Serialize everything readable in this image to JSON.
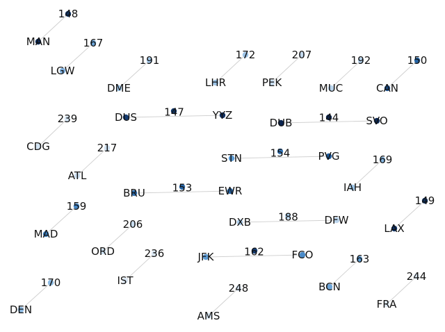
{
  "colors": {
    "edge": "#cfcfcf",
    "text": "#111111",
    "background": "#ffffff"
  },
  "nodes": [
    {
      "id": "MAN",
      "label": "MAN",
      "color": "#0d2a57"
    },
    {
      "id": "LGW",
      "label": "LGW",
      "color": "#7fb0de"
    },
    {
      "id": "DME",
      "label": "DME",
      "color": "#a3c9ea"
    },
    {
      "id": "LHR",
      "label": "LHR",
      "color": "#9cc4e8"
    },
    {
      "id": "PEK",
      "label": "PEK",
      "color": "#c7dcef"
    },
    {
      "id": "MUC",
      "label": "MUC",
      "color": "#b9d4ec"
    },
    {
      "id": "CAN",
      "label": "CAN",
      "color": "#1d4f8a"
    },
    {
      "id": "DUS",
      "label": "DUS",
      "color": "#163d72"
    },
    {
      "id": "YYZ",
      "label": "YYZ",
      "color": "#102f60"
    },
    {
      "id": "DUB",
      "label": "DUB",
      "color": "#0b2550"
    },
    {
      "id": "SVO",
      "label": "SVO",
      "color": "#0d2a57"
    },
    {
      "id": "CDG",
      "label": "CDG",
      "color": "#d3e4f3"
    },
    {
      "id": "ATL",
      "label": "ATL",
      "color": "#ccdff1"
    },
    {
      "id": "STN",
      "label": "STN",
      "color": "#5a9ad3"
    },
    {
      "id": "PVG",
      "label": "PVG",
      "color": "#1f5a9a"
    },
    {
      "id": "IAH",
      "label": "IAH",
      "color": "#9ec6e8"
    },
    {
      "id": "BRU",
      "label": "BRU",
      "color": "#2f6eae"
    },
    {
      "id": "EWR",
      "label": "EWR",
      "color": "#2a66a6"
    },
    {
      "id": "MAD",
      "label": "MAD",
      "color": "#3a7dbd"
    },
    {
      "id": "LAX",
      "label": "LAX",
      "color": "#0f3266"
    },
    {
      "id": "DXB",
      "label": "DXB",
      "color": "#a9cbe9"
    },
    {
      "id": "DFW",
      "label": "DFW",
      "color": "#bcd5ec"
    },
    {
      "id": "ORD",
      "label": "ORD",
      "color": "#cde0f1"
    },
    {
      "id": "JFK",
      "label": "JFK",
      "color": "#5d9bd3"
    },
    {
      "id": "FCO",
      "label": "FCO",
      "color": "#4a8bc9"
    },
    {
      "id": "IST",
      "label": "IST",
      "color": "#dde9f5"
    },
    {
      "id": "DEN",
      "label": "DEN",
      "color": "#8ebbe3"
    },
    {
      "id": "BCN",
      "label": "BCN",
      "color": "#6ea6d9"
    },
    {
      "id": "FRA",
      "label": "FRA",
      "color": "#e2edf7"
    },
    {
      "id": "AMS",
      "label": "AMS",
      "color": "#d8e6f3"
    },
    {
      "id": "e148",
      "label": "",
      "color": "#13386b"
    },
    {
      "id": "e167",
      "label": "",
      "color": "#6aa4d8"
    },
    {
      "id": "e191",
      "label": "",
      "color": "#a5c9ea"
    },
    {
      "id": "e172",
      "label": "",
      "color": "#9ec5e8"
    },
    {
      "id": "e207",
      "label": "",
      "color": "#c4daef"
    },
    {
      "id": "e192",
      "label": "",
      "color": "#b5d1eb"
    },
    {
      "id": "e150",
      "label": "",
      "color": "#2463a3"
    },
    {
      "id": "e147",
      "label": "",
      "color": "#133868"
    },
    {
      "id": "e144",
      "label": "",
      "color": "#0c2752"
    },
    {
      "id": "e239",
      "label": "",
      "color": "#d6e6f4"
    },
    {
      "id": "e217",
      "label": "",
      "color": "#cfe1f2"
    },
    {
      "id": "e154",
      "label": "",
      "color": "#3777b8"
    },
    {
      "id": "e169",
      "label": "",
      "color": "#86b6e0"
    },
    {
      "id": "e153",
      "label": "",
      "color": "#2a68a8"
    },
    {
      "id": "e159",
      "label": "",
      "color": "#4786c4"
    },
    {
      "id": "e149",
      "label": "",
      "color": "#10325f"
    },
    {
      "id": "e188",
      "label": "",
      "color": "#b0cfea"
    },
    {
      "id": "e206",
      "label": "",
      "color": "#cadef0"
    },
    {
      "id": "e162",
      "label": "",
      "color": "#163d72"
    },
    {
      "id": "e236",
      "label": "",
      "color": "#dce9f5"
    },
    {
      "id": "e170",
      "label": "",
      "color": "#8cbae2"
    },
    {
      "id": "e163",
      "label": "",
      "color": "#5f9dd4"
    },
    {
      "id": "e244",
      "label": "",
      "color": "#e0ecf6"
    },
    {
      "id": "e248",
      "label": "",
      "color": "#dbe8f4"
    }
  ],
  "edges": [
    {
      "from": "MAN",
      "to": "e148",
      "label": "148"
    },
    {
      "from": "LGW",
      "to": "e167",
      "label": "167"
    },
    {
      "from": "DME",
      "to": "e191",
      "label": "191"
    },
    {
      "from": "LHR",
      "to": "e172",
      "label": "172"
    },
    {
      "from": "PEK",
      "to": "e207",
      "label": "207"
    },
    {
      "from": "MUC",
      "to": "e192",
      "label": "192"
    },
    {
      "from": "CAN",
      "to": "e150",
      "label": "150"
    },
    {
      "from": "DUS",
      "to": "YYZ",
      "label": "147"
    },
    {
      "from": "DUB",
      "to": "SVO",
      "label": "144"
    },
    {
      "from": "CDG",
      "to": "e239",
      "label": "239"
    },
    {
      "from": "ATL",
      "to": "e217",
      "label": "217"
    },
    {
      "from": "STN",
      "to": "PVG",
      "label": "154"
    },
    {
      "from": "IAH",
      "to": "e169",
      "label": "169"
    },
    {
      "from": "BRU",
      "to": "EWR",
      "label": "153"
    },
    {
      "from": "MAD",
      "to": "e159",
      "label": "159"
    },
    {
      "from": "LAX",
      "to": "e149",
      "label": "149"
    },
    {
      "from": "DXB",
      "to": "DFW",
      "label": "188"
    },
    {
      "from": "ORD",
      "to": "e206",
      "label": "206"
    },
    {
      "from": "JFK",
      "to": "FCO",
      "label": "162"
    },
    {
      "from": "IST",
      "to": "e236",
      "label": "236"
    },
    {
      "from": "DEN",
      "to": "e170",
      "label": "170"
    },
    {
      "from": "BCN",
      "to": "e163",
      "label": "163"
    },
    {
      "from": "FRA",
      "to": "e244",
      "label": "244"
    },
    {
      "from": "AMS",
      "to": "e248",
      "label": "248"
    }
  ]
}
